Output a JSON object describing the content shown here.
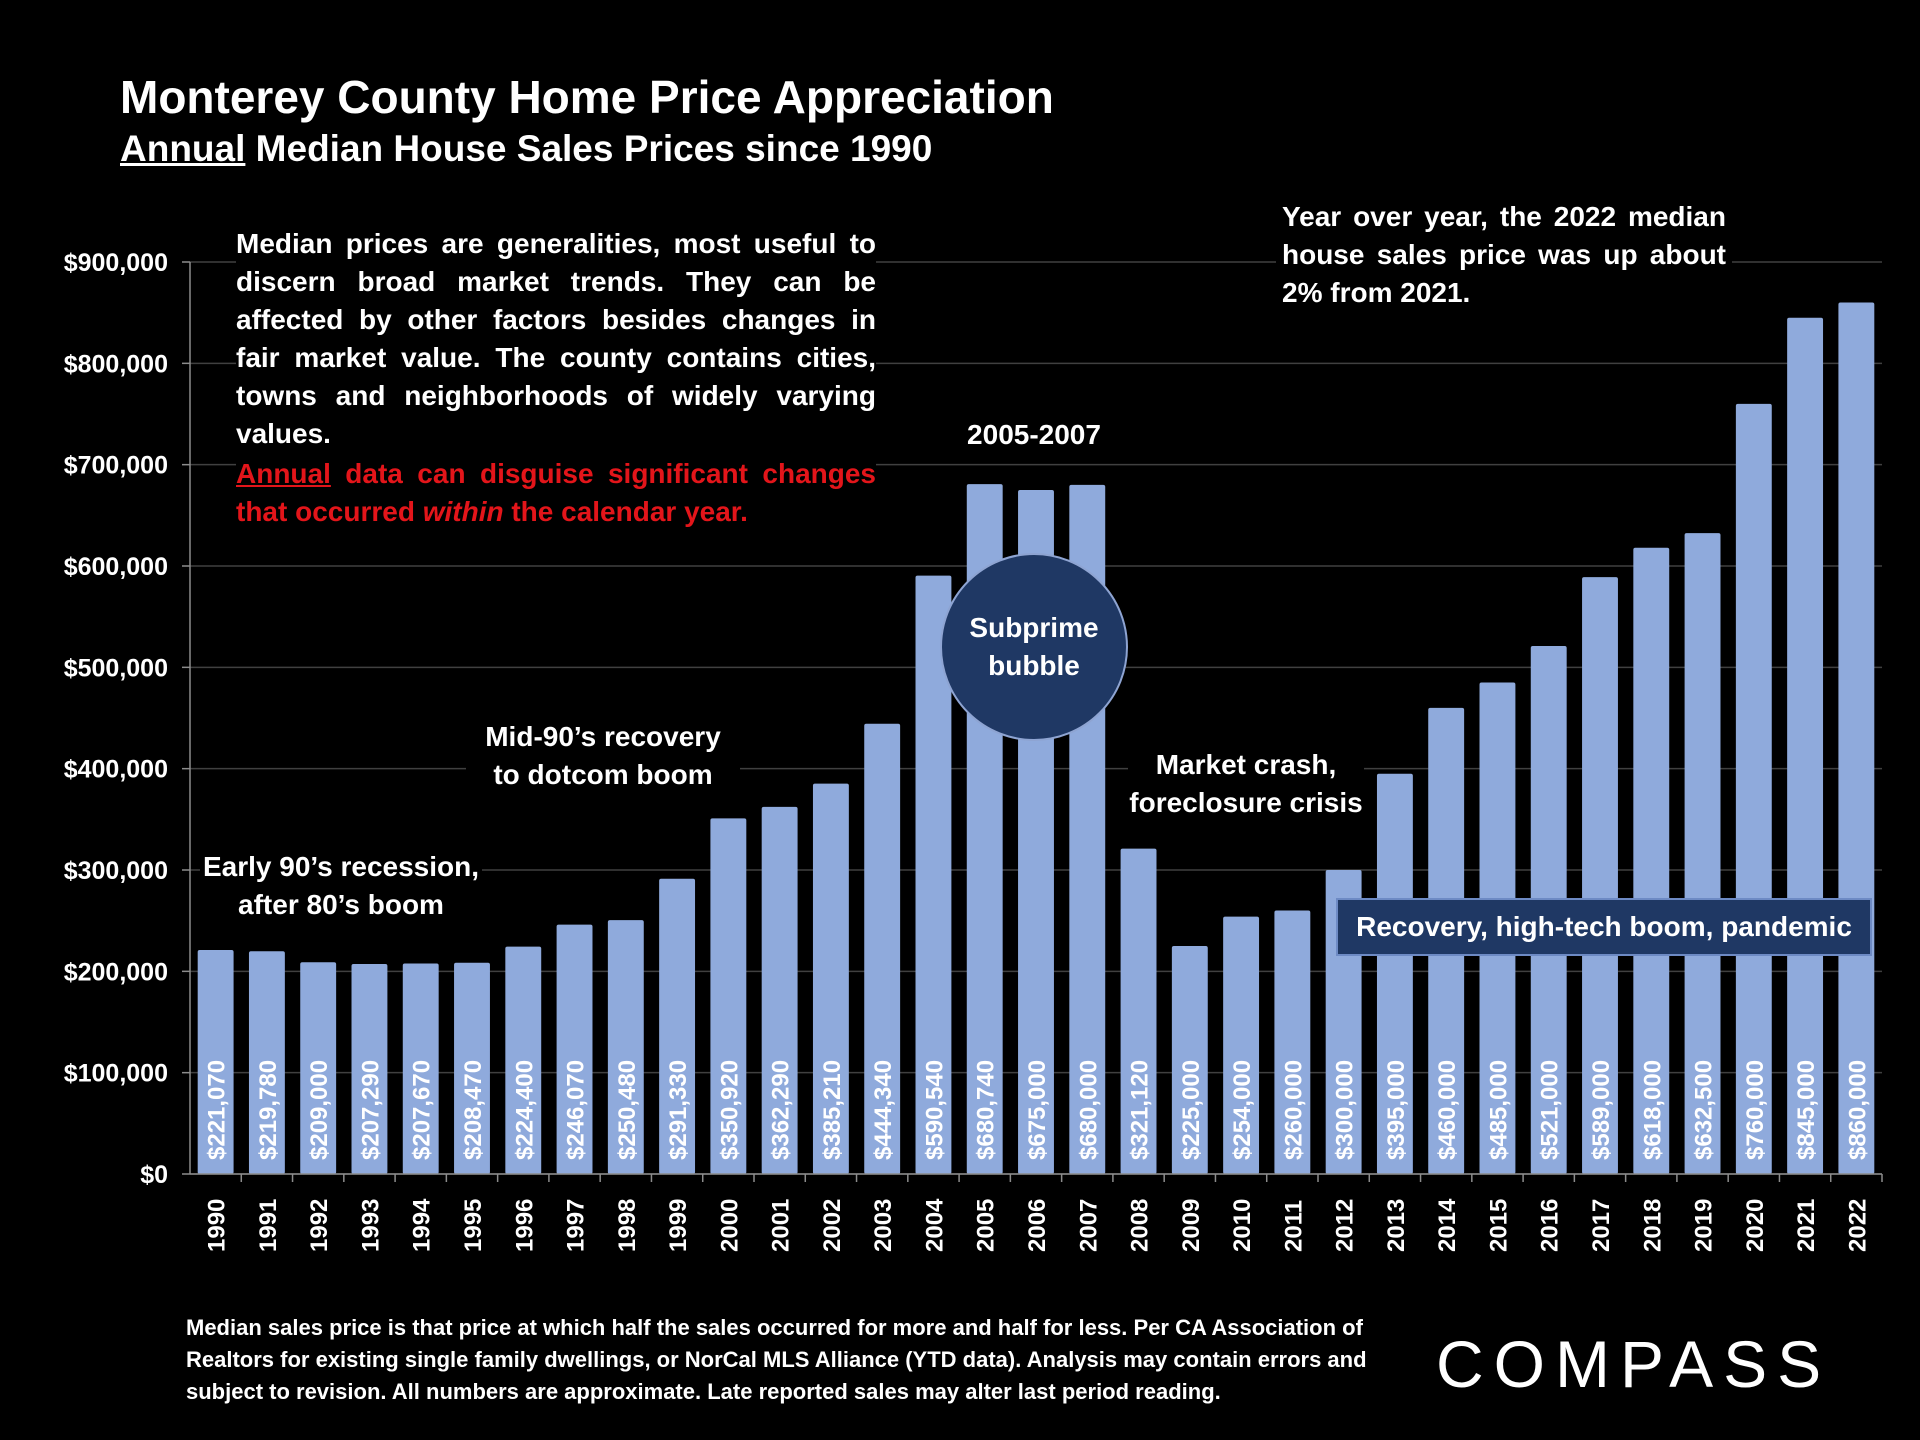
{
  "header": {
    "title": "Monterey County Home Price Appreciation",
    "subtitle_underlined": "Annual",
    "subtitle_rest": " Median House Sales Prices since 1990"
  },
  "notes": {
    "left": "Median prices are generalities, most useful to discern broad market trends. They can be affected by other factors besides changes in fair market value. The county contains cities, towns and neighborhoods of widely varying values.",
    "red_underlined": "Annual",
    "red_part1": " data can disguise significant changes that occurred ",
    "red_italic": "within",
    "red_part2": " the calendar year.",
    "right": "Year over year, the 2022 median house sales price was up about 2% from 2021."
  },
  "annotations": {
    "early90s_line1": "Early 90’s recession,",
    "early90s_line2": "after 80’s boom",
    "mid90s_line1": "Mid-90’s recovery",
    "mid90s_line2": "to dotcom boom",
    "range": "2005-2007",
    "bubble_line1": "Subprime",
    "bubble_line2": "bubble",
    "crash_line1": "Market crash,",
    "crash_line2": "foreclosure crisis",
    "recovery": "Recovery, high-tech boom, pandemic"
  },
  "footer": "Median sales price is that price at which half the sales occurred for more and half for less. Per CA Association of Realtors for existing single family dwellings, or NorCal MLS Alliance (YTD data). Analysis may contain errors and subject to revision. All numbers are approximate. Late reported sales may alter last period reading.",
  "brand": "COMPASS",
  "colors": {
    "bar": "#8faadc",
    "background": "#000000",
    "red": "#e3151a",
    "navy": "#1f3864"
  },
  "chart_data": {
    "type": "bar",
    "title": "Monterey County Home Price Appreciation",
    "subtitle": "Annual Median House Sales Prices since 1990",
    "xlabel": "",
    "ylabel": "",
    "ylim": [
      0,
      900000
    ],
    "yticks": [
      0,
      100000,
      200000,
      300000,
      400000,
      500000,
      600000,
      700000,
      800000,
      900000
    ],
    "ytick_labels": [
      "$0",
      "$100,000",
      "$200,000",
      "$300,000",
      "$400,000",
      "$500,000",
      "$600,000",
      "$700,000",
      "$800,000",
      "$900,000"
    ],
    "grid": true,
    "categories": [
      "1990",
      "1991",
      "1992",
      "1993",
      "1994",
      "1995",
      "1996",
      "1997",
      "1998",
      "1999",
      "2000",
      "2001",
      "2002",
      "2003",
      "2004",
      "2005",
      "2006",
      "2007",
      "2008",
      "2009",
      "2010",
      "2011",
      "2012",
      "2013",
      "2014",
      "2015",
      "2016",
      "2017",
      "2018",
      "2019",
      "2020",
      "2021",
      "2022"
    ],
    "values": [
      221070,
      219780,
      209000,
      207290,
      207670,
      208470,
      224400,
      246070,
      250480,
      291330,
      350920,
      362290,
      385210,
      444340,
      590540,
      680740,
      675000,
      680000,
      321120,
      225000,
      254000,
      260000,
      300000,
      395000,
      460000,
      485000,
      521000,
      589000,
      618000,
      632500,
      760000,
      845000,
      860000
    ],
    "data_labels": [
      "$221,070",
      "$219,780",
      "$209,000",
      "$207,290",
      "$207,670",
      "$208,470",
      "$224,400",
      "$246,070",
      "$250,480",
      "$291,330",
      "$350,920",
      "$362,290",
      "$385,210",
      "$444,340",
      "$590,540",
      "$680,740",
      "$675,000",
      "$680,000",
      "$321,120",
      "$225,000",
      "$254,000",
      "$260,000",
      "$300,000",
      "$395,000",
      "$460,000",
      "$485,000",
      "$521,000",
      "$589,000",
      "$618,000",
      "$632,500",
      "$760,000",
      "$845,000",
      "$860,000"
    ]
  }
}
